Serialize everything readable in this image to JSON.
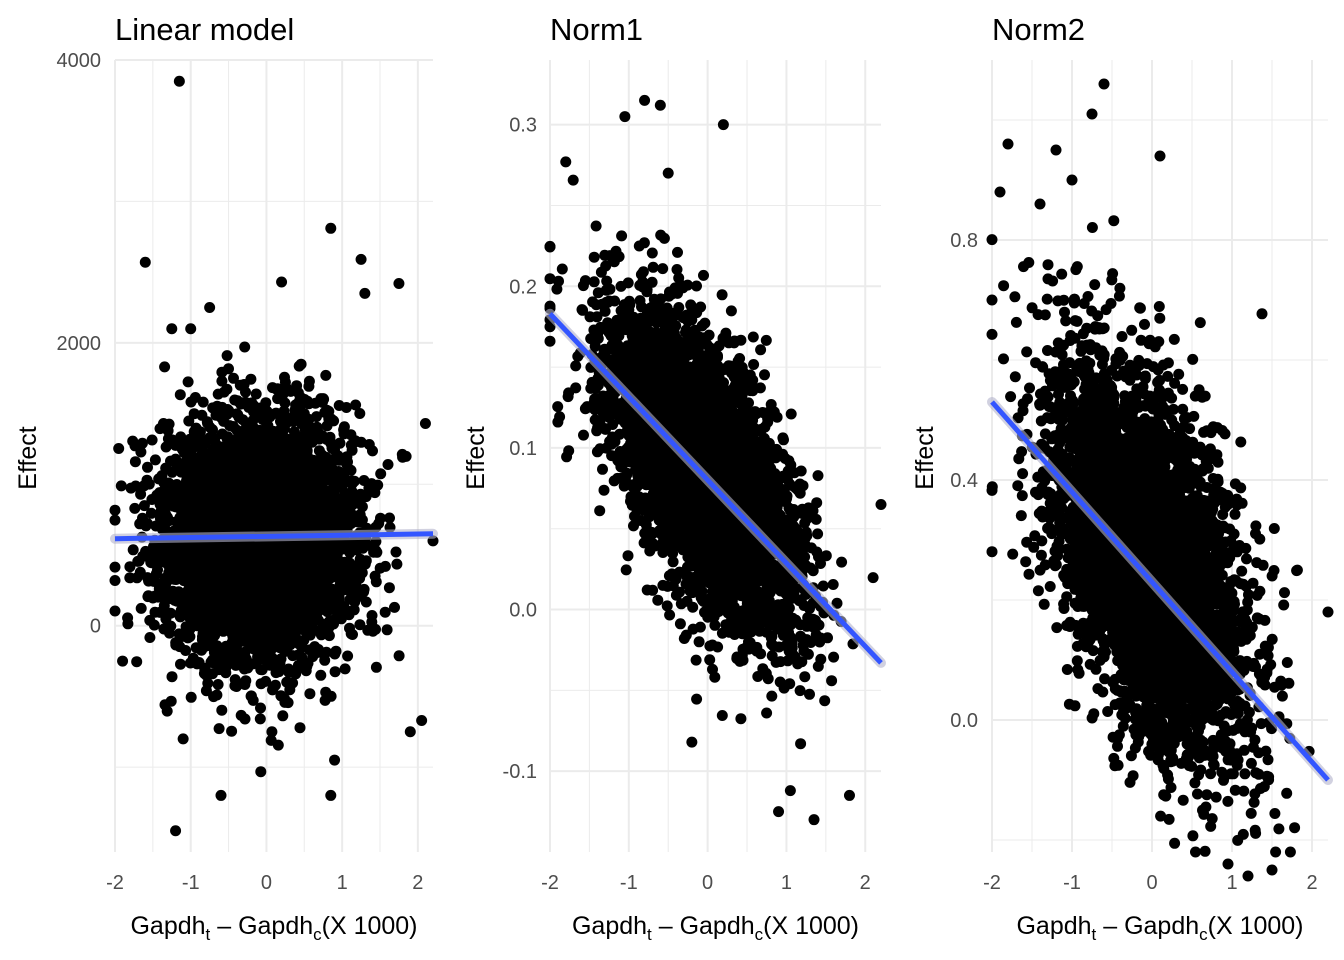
{
  "chart_data": [
    {
      "type": "scatter",
      "title": "Linear model",
      "ylabel": "Effect",
      "xlabel": {
        "a": "Gapdh",
        "a_sub": "t",
        "dash": " – ",
        "b": "Gapdh",
        "b_sub": "c",
        "rest": "(X 1000)"
      },
      "xlim": [
        -2.0,
        2.2
      ],
      "ylim": [
        -1600,
        4000
      ],
      "xticks": [
        -2,
        -1,
        0,
        1,
        2
      ],
      "xtick_labels": [
        "-2",
        "-1",
        "0",
        "1",
        "2"
      ],
      "yticks": [
        0,
        2000,
        4000
      ],
      "ytick_labels": [
        "0",
        "2000",
        "4000"
      ],
      "y_minor": [
        -1000,
        1000,
        3000
      ],
      "cloud": {
        "n": 4500,
        "x_mean": -0.1,
        "x_sd": 0.62,
        "y_mean": 600,
        "y_sd": 420,
        "slope": 0
      },
      "outliers": [
        [
          -1.15,
          3850
        ],
        [
          -1.6,
          2570
        ],
        [
          0.85,
          2810
        ],
        [
          0.2,
          2430
        ],
        [
          1.25,
          2590
        ],
        [
          1.75,
          2420
        ],
        [
          1.3,
          2350
        ],
        [
          -0.75,
          2250
        ],
        [
          -1.0,
          2100
        ],
        [
          -1.25,
          2100
        ],
        [
          2.1,
          1430
        ],
        [
          -0.6,
          -1200
        ],
        [
          -1.1,
          -800
        ],
        [
          -1.2,
          -1450
        ],
        [
          2.05,
          -670
        ],
        [
          1.9,
          -750
        ],
        [
          0.85,
          -1200
        ],
        [
          0.9,
          -950
        ],
        [
          2.2,
          600
        ],
        [
          -1.9,
          -250
        ],
        [
          -2.0,
          320
        ]
      ],
      "fit": {
        "x": [
          -2.0,
          2.2
        ],
        "y": [
          615,
          650
        ]
      }
    },
    {
      "type": "scatter",
      "title": "Norm1",
      "ylabel": "Effect",
      "xlabel": {
        "a": "Gapdh",
        "a_sub": "t",
        "dash": " – ",
        "b": "Gapdh",
        "b_sub": "c",
        "rest": "(X 1000)"
      },
      "xlim": [
        -2.0,
        2.2
      ],
      "ylim": [
        -0.15,
        0.34
      ],
      "xticks": [
        -2,
        -1,
        0,
        1,
        2
      ],
      "xtick_labels": [
        "-2",
        "-1",
        "0",
        "1",
        "2"
      ],
      "yticks": [
        -0.1,
        0.0,
        0.1,
        0.2,
        0.3
      ],
      "ytick_labels": [
        "-0.1",
        "0.0",
        "0.1",
        "0.2",
        "0.3"
      ],
      "y_minor": [
        -0.05,
        0.05,
        0.15,
        0.25
      ],
      "cloud": {
        "n": 4500,
        "x_mean": -0.05,
        "x_sd": 0.6,
        "y_mean": 0.085,
        "y_sd": 0.038,
        "slope": -0.052
      },
      "outliers": [
        [
          -0.8,
          0.315
        ],
        [
          -0.6,
          0.312
        ],
        [
          -1.05,
          0.305
        ],
        [
          0.2,
          0.3
        ],
        [
          -1.8,
          0.277
        ],
        [
          -0.5,
          0.27
        ],
        [
          0.9,
          -0.125
        ],
        [
          1.35,
          -0.13
        ],
        [
          1.05,
          -0.112
        ],
        [
          1.8,
          -0.115
        ],
        [
          2.2,
          0.065
        ],
        [
          -2.0,
          0.175
        ],
        [
          -1.9,
          0.116
        ],
        [
          -0.2,
          -0.082
        ]
      ],
      "fit": {
        "x": [
          -2.0,
          2.2
        ],
        "y": [
          0.183,
          -0.033
        ]
      }
    },
    {
      "type": "scatter",
      "title": "Norm2",
      "ylabel": "Effect",
      "xlabel": {
        "a": "Gapdh",
        "a_sub": "t",
        "dash": " – ",
        "b": "Gapdh",
        "b_sub": "c",
        "rest": "(X 1000)"
      },
      "xlim": [
        -2.0,
        2.2
      ],
      "ylim": [
        -0.22,
        1.1
      ],
      "xticks": [
        -2,
        -1,
        0,
        1,
        2
      ],
      "xtick_labels": [
        "-2",
        "-1",
        "0",
        "1",
        "2"
      ],
      "yticks": [
        0.0,
        0.4,
        0.8
      ],
      "ytick_labels": [
        "0.0",
        "0.4",
        "0.8"
      ],
      "y_minor": [
        -0.2,
        0.2,
        0.6,
        1.0
      ],
      "cloud": {
        "n": 4500,
        "x_mean": -0.05,
        "x_sd": 0.6,
        "y_mean": 0.27,
        "y_sd": 0.14,
        "slope": -0.145
      },
      "outliers": [
        [
          -0.6,
          1.06
        ],
        [
          -0.75,
          1.01
        ],
        [
          -1.8,
          0.96
        ],
        [
          -1.2,
          0.95
        ],
        [
          0.1,
          0.94
        ],
        [
          1.2,
          -0.26
        ],
        [
          0.95,
          -0.24
        ],
        [
          1.5,
          -0.25
        ],
        [
          2.2,
          0.18
        ],
        [
          -2.0,
          0.7
        ],
        [
          -1.9,
          0.88
        ],
        [
          -1.0,
          0.9
        ],
        [
          -1.4,
          0.86
        ]
      ],
      "fit": {
        "x": [
          -2.0,
          2.2
        ],
        "y": [
          0.53,
          -0.1
        ]
      }
    }
  ],
  "colors": {
    "points": "#000000",
    "fit": "#3355ff",
    "fit_band": "#b3b3cc",
    "grid": "#ebebeb",
    "tick_text": "#4d4d4d"
  }
}
